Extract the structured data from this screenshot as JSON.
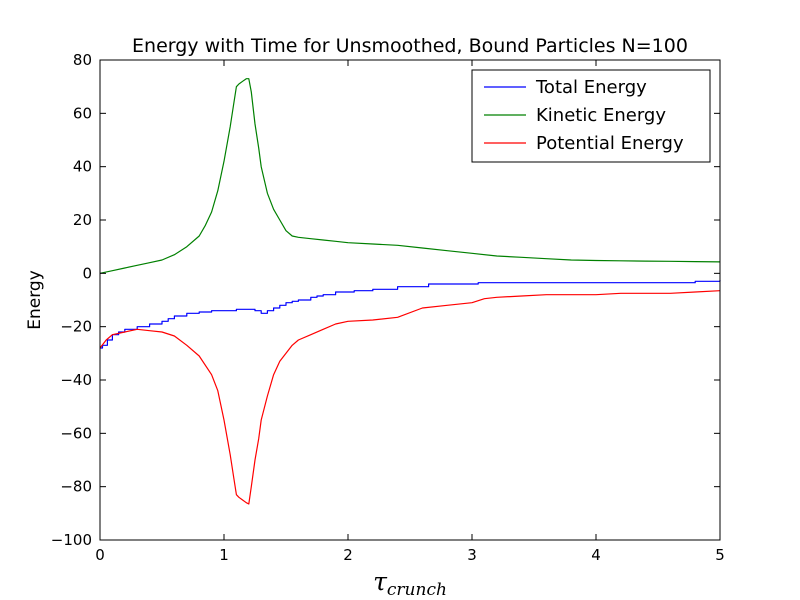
{
  "chart_data": {
    "type": "line",
    "title": "Energy with Time for Unsmoothed, Bound Particles N=100",
    "xlabel": {
      "symbol": "τ",
      "subscript": "crunch"
    },
    "ylabel": "Energy",
    "xlim": [
      0,
      5
    ],
    "ylim": [
      -100,
      80
    ],
    "xticks": [
      0,
      1,
      2,
      3,
      4,
      5
    ],
    "yticks": [
      -100,
      -80,
      -60,
      -40,
      -20,
      0,
      20,
      40,
      60,
      80
    ],
    "xtick_labels": [
      "0",
      "1",
      "2",
      "3",
      "4",
      "5"
    ],
    "ytick_labels": [
      "−100",
      "−80",
      "−60",
      "−40",
      "−20",
      "0",
      "20",
      "40",
      "60",
      "80"
    ],
    "grid": false,
    "legend_position": "top-right",
    "series": [
      {
        "name": "Total Energy",
        "color": "#0000ff",
        "step": true,
        "x": [
          0,
          0.02,
          0.06,
          0.1,
          0.15,
          0.2,
          0.3,
          0.4,
          0.5,
          0.55,
          0.6,
          0.7,
          0.8,
          0.9,
          1.0,
          1.1,
          1.2,
          1.25,
          1.3,
          1.35,
          1.4,
          1.45,
          1.5,
          1.55,
          1.6,
          1.7,
          1.75,
          1.8,
          1.9,
          2.05,
          2.2,
          2.4,
          2.65,
          3.05,
          3.5,
          4.0,
          4.5,
          4.75,
          4.8,
          5.0
        ],
        "y": [
          -28,
          -27,
          -25,
          -23,
          -22,
          -21,
          -20,
          -19,
          -18,
          -17,
          -16,
          -15,
          -14.5,
          -14,
          -14,
          -13.5,
          -13.5,
          -14,
          -15,
          -14,
          -13,
          -12,
          -11,
          -10.5,
          -10,
          -9,
          -8.5,
          -8,
          -7,
          -6.5,
          -6,
          -5,
          -4,
          -3.5,
          -3.5,
          -3.5,
          -3.5,
          -3.5,
          -3,
          -2.5
        ]
      },
      {
        "name": "Kinetic Energy",
        "color": "#008000",
        "step": false,
        "x": [
          0,
          0.1,
          0.2,
          0.3,
          0.4,
          0.5,
          0.6,
          0.7,
          0.8,
          0.85,
          0.9,
          0.95,
          1.0,
          1.05,
          1.08,
          1.1,
          1.12,
          1.15,
          1.18,
          1.2,
          1.22,
          1.25,
          1.28,
          1.3,
          1.35,
          1.4,
          1.45,
          1.5,
          1.55,
          1.6,
          1.7,
          1.8,
          1.9,
          2.0,
          2.2,
          2.4,
          2.6,
          2.8,
          3.0,
          3.2,
          3.4,
          3.6,
          3.8,
          4.0,
          4.2,
          4.4,
          4.6,
          4.8,
          5.0
        ],
        "y": [
          0,
          1,
          2,
          3,
          4,
          5,
          7,
          10,
          14,
          18,
          23,
          31,
          42,
          55,
          64,
          70,
          71,
          72,
          73,
          73,
          68,
          56,
          47,
          40,
          30,
          24,
          20,
          16,
          14,
          13.5,
          13,
          12.5,
          12,
          11.5,
          11,
          10.5,
          9.5,
          8.5,
          7.5,
          6.5,
          6,
          5.5,
          5,
          4.8,
          4.7,
          4.6,
          4.5,
          4.4,
          4.3
        ]
      },
      {
        "name": "Potential Energy",
        "color": "#ff0000",
        "step": false,
        "x": [
          0,
          0.05,
          0.1,
          0.2,
          0.3,
          0.4,
          0.5,
          0.6,
          0.7,
          0.8,
          0.9,
          0.95,
          1.0,
          1.05,
          1.08,
          1.1,
          1.12,
          1.15,
          1.18,
          1.2,
          1.22,
          1.25,
          1.28,
          1.3,
          1.35,
          1.4,
          1.45,
          1.5,
          1.55,
          1.6,
          1.7,
          1.8,
          1.9,
          2.0,
          2.2,
          2.4,
          2.6,
          2.8,
          3.0,
          3.1,
          3.2,
          3.4,
          3.6,
          3.8,
          4.0,
          4.2,
          4.4,
          4.6,
          4.8,
          5.0
        ],
        "y": [
          -28,
          -25,
          -23,
          -22,
          -21,
          -21.5,
          -22,
          -23.5,
          -27,
          -31,
          -38,
          -44,
          -55,
          -68,
          -77,
          -83,
          -84,
          -85,
          -86,
          -86.5,
          -80,
          -70,
          -62,
          -55,
          -46,
          -38,
          -33,
          -30,
          -27,
          -25,
          -23,
          -21,
          -19,
          -18,
          -17.5,
          -16.5,
          -13,
          -12,
          -11,
          -9.5,
          -9,
          -8.5,
          -8,
          -8,
          -8,
          -7.5,
          -7.5,
          -7.5,
          -7,
          -6.5
        ]
      }
    ]
  }
}
